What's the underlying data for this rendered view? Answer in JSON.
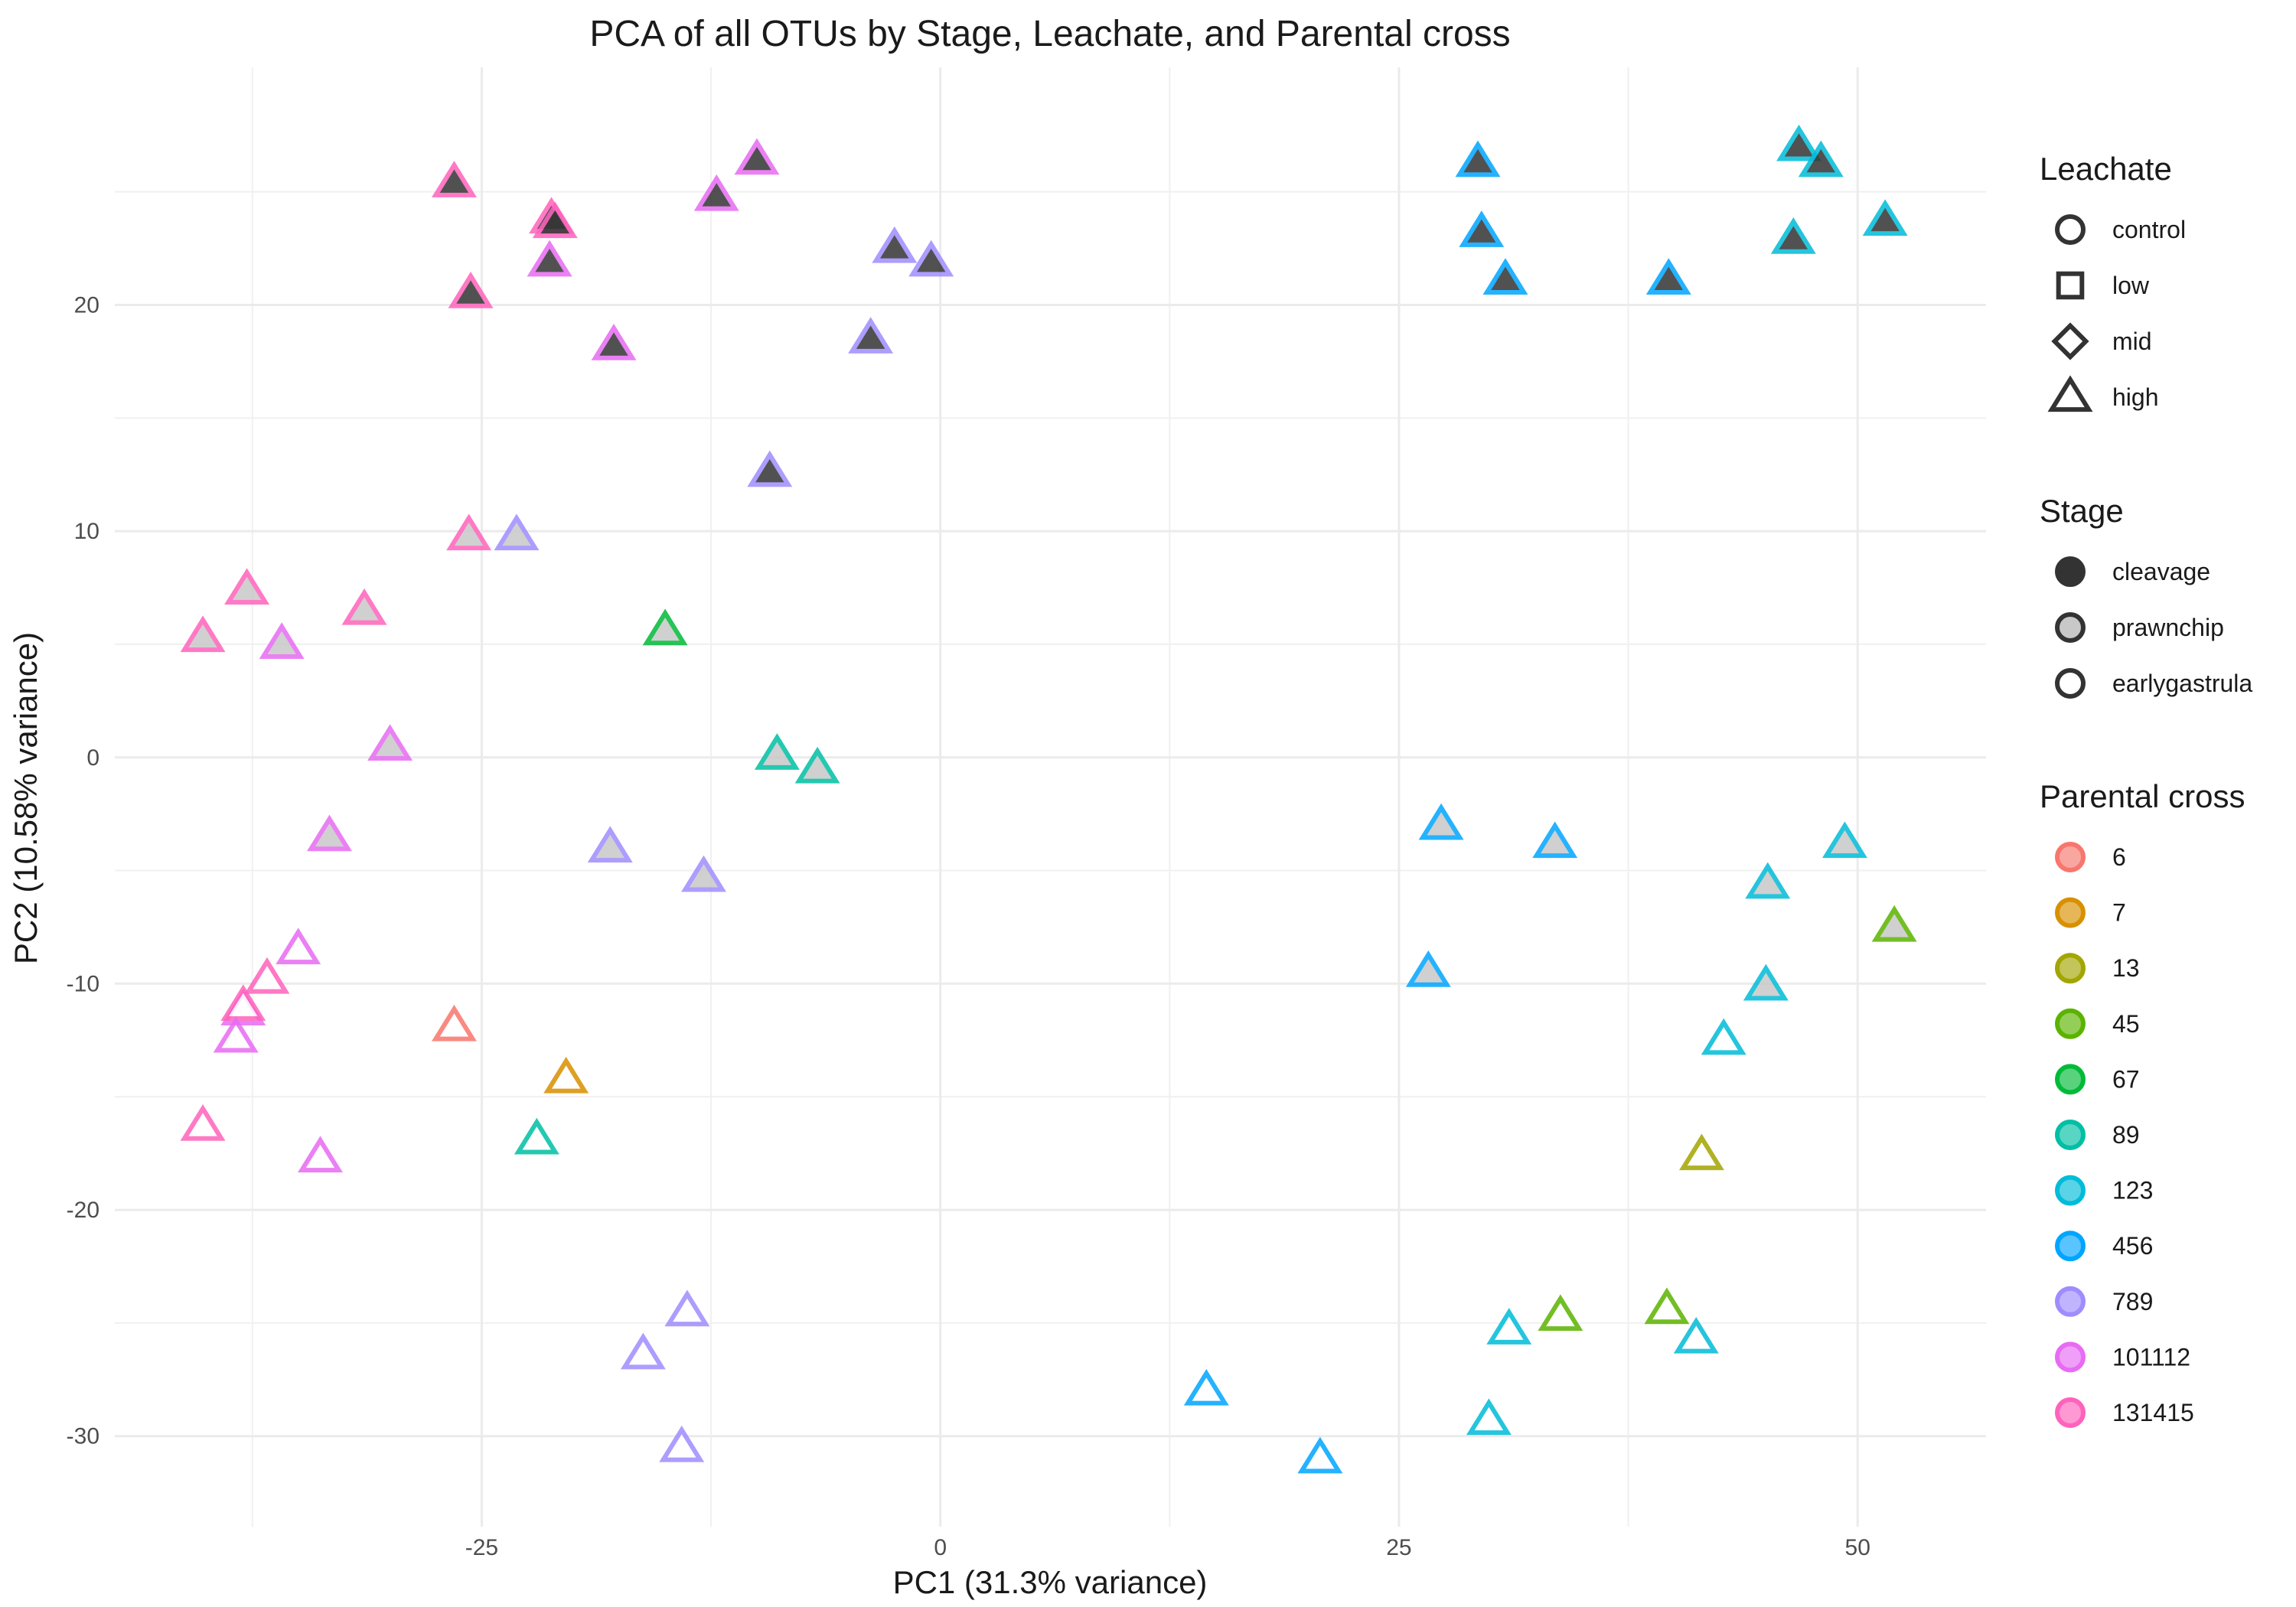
{
  "chart_data": {
    "type": "scatter",
    "title": "PCA of all OTUs by Stage, Leachate, and Parental cross",
    "xlabel": "PC1 (31.3% variance)",
    "ylabel": "PC2 (10.58% variance)",
    "xlim": [
      -45,
      57
    ],
    "ylim": [
      -34,
      30.5
    ],
    "x_ticks": [
      -25,
      0,
      25,
      50
    ],
    "y_ticks": [
      -30,
      -20,
      -10,
      0,
      10,
      20
    ],
    "x_tick_labels": [
      "-25",
      "0",
      "25",
      "50"
    ],
    "y_tick_labels": [
      "-30",
      "-20",
      "-10",
      "0",
      "10",
      "20"
    ],
    "grid": true,
    "legend_position": "right",
    "legends": {
      "leachate": {
        "title": "Leachate",
        "items": [
          {
            "label": "control",
            "shape": "circle"
          },
          {
            "label": "low",
            "shape": "square"
          },
          {
            "label": "mid",
            "shape": "diamond"
          },
          {
            "label": "high",
            "shape": "triangle"
          }
        ]
      },
      "stage": {
        "title": "Stage",
        "items": [
          {
            "label": "cleavage",
            "fill": "#333333"
          },
          {
            "label": "prawnchip",
            "fill": "#c8c8c8"
          },
          {
            "label": "earlygastrula",
            "fill": "#ffffff"
          }
        ]
      },
      "cross": {
        "title": "Parental cross",
        "items": [
          {
            "label": "6",
            "color": "#F8766D"
          },
          {
            "label": "7",
            "color": "#D89000"
          },
          {
            "label": "13",
            "color": "#A3A500"
          },
          {
            "label": "45",
            "color": "#5BB300"
          },
          {
            "label": "67",
            "color": "#00BA38"
          },
          {
            "label": "89",
            "color": "#00BFA4"
          },
          {
            "label": "123",
            "color": "#00BCD8"
          },
          {
            "label": "456",
            "color": "#00A5FF"
          },
          {
            "label": "789",
            "color": "#9F8CFF"
          },
          {
            "label": "101112",
            "color": "#E76BF3"
          },
          {
            "label": "131415",
            "color": "#FF62BC"
          }
        ]
      }
    },
    "points": [
      {
        "x": -26.5,
        "y": 25.4,
        "leachate": "control",
        "stage": "cleavage",
        "cross": "131415"
      },
      {
        "x": -21.2,
        "y": 23.8,
        "leachate": "low",
        "stage": "cleavage",
        "cross": "131415"
      },
      {
        "x": -21.0,
        "y": 23.6,
        "leachate": "high",
        "stage": "cleavage",
        "cross": "131415"
      },
      {
        "x": -21.3,
        "y": 21.9,
        "leachate": "low",
        "stage": "cleavage",
        "cross": "101112"
      },
      {
        "x": -25.6,
        "y": 20.5,
        "leachate": "mid",
        "stage": "cleavage",
        "cross": "131415"
      },
      {
        "x": -17.8,
        "y": 18.2,
        "leachate": "control",
        "stage": "cleavage",
        "cross": "101112"
      },
      {
        "x": -12.2,
        "y": 24.8,
        "leachate": "mid",
        "stage": "cleavage",
        "cross": "101112"
      },
      {
        "x": -10.0,
        "y": 26.4,
        "leachate": "high",
        "stage": "cleavage",
        "cross": "101112"
      },
      {
        "x": -2.5,
        "y": 22.5,
        "leachate": "mid",
        "stage": "cleavage",
        "cross": "789"
      },
      {
        "x": -0.5,
        "y": 21.9,
        "leachate": "high",
        "stage": "cleavage",
        "cross": "789"
      },
      {
        "x": -3.8,
        "y": 18.5,
        "leachate": "low",
        "stage": "cleavage",
        "cross": "789"
      },
      {
        "x": -9.3,
        "y": 12.6,
        "leachate": "control",
        "stage": "cleavage",
        "cross": "789"
      },
      {
        "x": 29.3,
        "y": 26.3,
        "leachate": "high",
        "stage": "cleavage",
        "cross": "456"
      },
      {
        "x": 29.5,
        "y": 23.2,
        "leachate": "low",
        "stage": "cleavage",
        "cross": "456"
      },
      {
        "x": 30.8,
        "y": 21.1,
        "leachate": "control",
        "stage": "cleavage",
        "cross": "456"
      },
      {
        "x": 39.7,
        "y": 21.1,
        "leachate": "mid",
        "stage": "cleavage",
        "cross": "456"
      },
      {
        "x": 46.8,
        "y": 27.0,
        "leachate": "high",
        "stage": "cleavage",
        "cross": "123"
      },
      {
        "x": 48.0,
        "y": 26.3,
        "leachate": "control",
        "stage": "cleavage",
        "cross": "123"
      },
      {
        "x": 46.5,
        "y": 22.9,
        "leachate": "mid",
        "stage": "cleavage",
        "cross": "123"
      },
      {
        "x": 51.5,
        "y": 23.7,
        "leachate": "low",
        "stage": "cleavage",
        "cross": "123"
      },
      {
        "x": -25.7,
        "y": 9.8,
        "leachate": "mid",
        "stage": "prawnchip",
        "cross": "131415"
      },
      {
        "x": -23.1,
        "y": 9.8,
        "leachate": "mid",
        "stage": "prawnchip",
        "cross": "789"
      },
      {
        "x": -37.8,
        "y": 7.4,
        "leachate": "control",
        "stage": "prawnchip",
        "cross": "131415"
      },
      {
        "x": -31.4,
        "y": 6.5,
        "leachate": "high",
        "stage": "prawnchip",
        "cross": "131415"
      },
      {
        "x": -40.2,
        "y": 5.3,
        "leachate": "low",
        "stage": "prawnchip",
        "cross": "131415"
      },
      {
        "x": -35.9,
        "y": 5.0,
        "leachate": "control",
        "stage": "prawnchip",
        "cross": "101112"
      },
      {
        "x": -15.0,
        "y": 5.6,
        "leachate": "control",
        "stage": "prawnchip",
        "cross": "67"
      },
      {
        "x": -30.0,
        "y": 0.5,
        "leachate": "high",
        "stage": "prawnchip",
        "cross": "101112"
      },
      {
        "x": -8.9,
        "y": 0.1,
        "leachate": "control",
        "stage": "prawnchip",
        "cross": "89"
      },
      {
        "x": -6.7,
        "y": -0.5,
        "leachate": "mid",
        "stage": "prawnchip",
        "cross": "89"
      },
      {
        "x": -33.3,
        "y": -3.5,
        "leachate": "low",
        "stage": "prawnchip",
        "cross": "101112"
      },
      {
        "x": -18.0,
        "y": -4.0,
        "leachate": "low",
        "stage": "prawnchip",
        "cross": "789"
      },
      {
        "x": -12.9,
        "y": -5.3,
        "leachate": "high",
        "stage": "prawnchip",
        "cross": "789"
      },
      {
        "x": 27.3,
        "y": -3.0,
        "leachate": "mid",
        "stage": "prawnchip",
        "cross": "456"
      },
      {
        "x": 33.5,
        "y": -3.8,
        "leachate": "low",
        "stage": "prawnchip",
        "cross": "456"
      },
      {
        "x": 26.6,
        "y": -9.5,
        "leachate": "high",
        "stage": "prawnchip",
        "cross": "456"
      },
      {
        "x": 45.1,
        "y": -5.6,
        "leachate": "high",
        "stage": "prawnchip",
        "cross": "123"
      },
      {
        "x": 49.3,
        "y": -3.8,
        "leachate": "low",
        "stage": "prawnchip",
        "cross": "123"
      },
      {
        "x": 45.0,
        "y": -10.1,
        "leachate": "mid",
        "stage": "prawnchip",
        "cross": "123"
      },
      {
        "x": 52.0,
        "y": -7.5,
        "leachate": "control",
        "stage": "prawnchip",
        "cross": "45"
      },
      {
        "x": -35.0,
        "y": -8.5,
        "leachate": "mid",
        "stage": "earlygastrula",
        "cross": "101112"
      },
      {
        "x": -36.7,
        "y": -9.8,
        "leachate": "mid",
        "stage": "earlygastrula",
        "cross": "131415"
      },
      {
        "x": -38.0,
        "y": -11.2,
        "leachate": "low",
        "stage": "earlygastrula",
        "cross": "101112"
      },
      {
        "x": -38.0,
        "y": -11.0,
        "leachate": "high",
        "stage": "earlygastrula",
        "cross": "131415"
      },
      {
        "x": -38.4,
        "y": -12.4,
        "leachate": "control",
        "stage": "earlygastrula",
        "cross": "101112"
      },
      {
        "x": -26.5,
        "y": -11.9,
        "leachate": "control",
        "stage": "earlygastrula",
        "cross": "6"
      },
      {
        "x": -20.4,
        "y": -14.2,
        "leachate": "control",
        "stage": "earlygastrula",
        "cross": "7"
      },
      {
        "x": -40.2,
        "y": -16.3,
        "leachate": "low",
        "stage": "earlygastrula",
        "cross": "131415"
      },
      {
        "x": -22.0,
        "y": -16.9,
        "leachate": "control",
        "stage": "earlygastrula",
        "cross": "89"
      },
      {
        "x": -33.8,
        "y": -17.7,
        "leachate": "control",
        "stage": "earlygastrula",
        "cross": "101112"
      },
      {
        "x": -13.8,
        "y": -24.5,
        "leachate": "mid",
        "stage": "earlygastrula",
        "cross": "789"
      },
      {
        "x": -16.2,
        "y": -26.4,
        "leachate": "high",
        "stage": "earlygastrula",
        "cross": "789"
      },
      {
        "x": -14.1,
        "y": -30.5,
        "leachate": "low",
        "stage": "earlygastrula",
        "cross": "789"
      },
      {
        "x": 14.5,
        "y": -28.0,
        "leachate": "mid",
        "stage": "earlygastrula",
        "cross": "456"
      },
      {
        "x": 20.7,
        "y": -31.0,
        "leachate": "low",
        "stage": "earlygastrula",
        "cross": "456"
      },
      {
        "x": 29.9,
        "y": -29.3,
        "leachate": "control",
        "stage": "earlygastrula",
        "cross": "123"
      },
      {
        "x": 31.0,
        "y": -25.3,
        "leachate": "high",
        "stage": "earlygastrula",
        "cross": "123"
      },
      {
        "x": 33.8,
        "y": -24.7,
        "leachate": "high",
        "stage": "earlygastrula",
        "cross": "45"
      },
      {
        "x": 39.6,
        "y": -24.4,
        "leachate": "control",
        "stage": "earlygastrula",
        "cross": "45"
      },
      {
        "x": 41.2,
        "y": -25.7,
        "leachate": "low",
        "stage": "earlygastrula",
        "cross": "123"
      },
      {
        "x": 41.5,
        "y": -17.6,
        "leachate": "mid",
        "stage": "earlygastrula",
        "cross": "13"
      },
      {
        "x": 42.7,
        "y": -12.5,
        "leachate": "control",
        "stage": "earlygastrula",
        "cross": "123"
      }
    ]
  }
}
